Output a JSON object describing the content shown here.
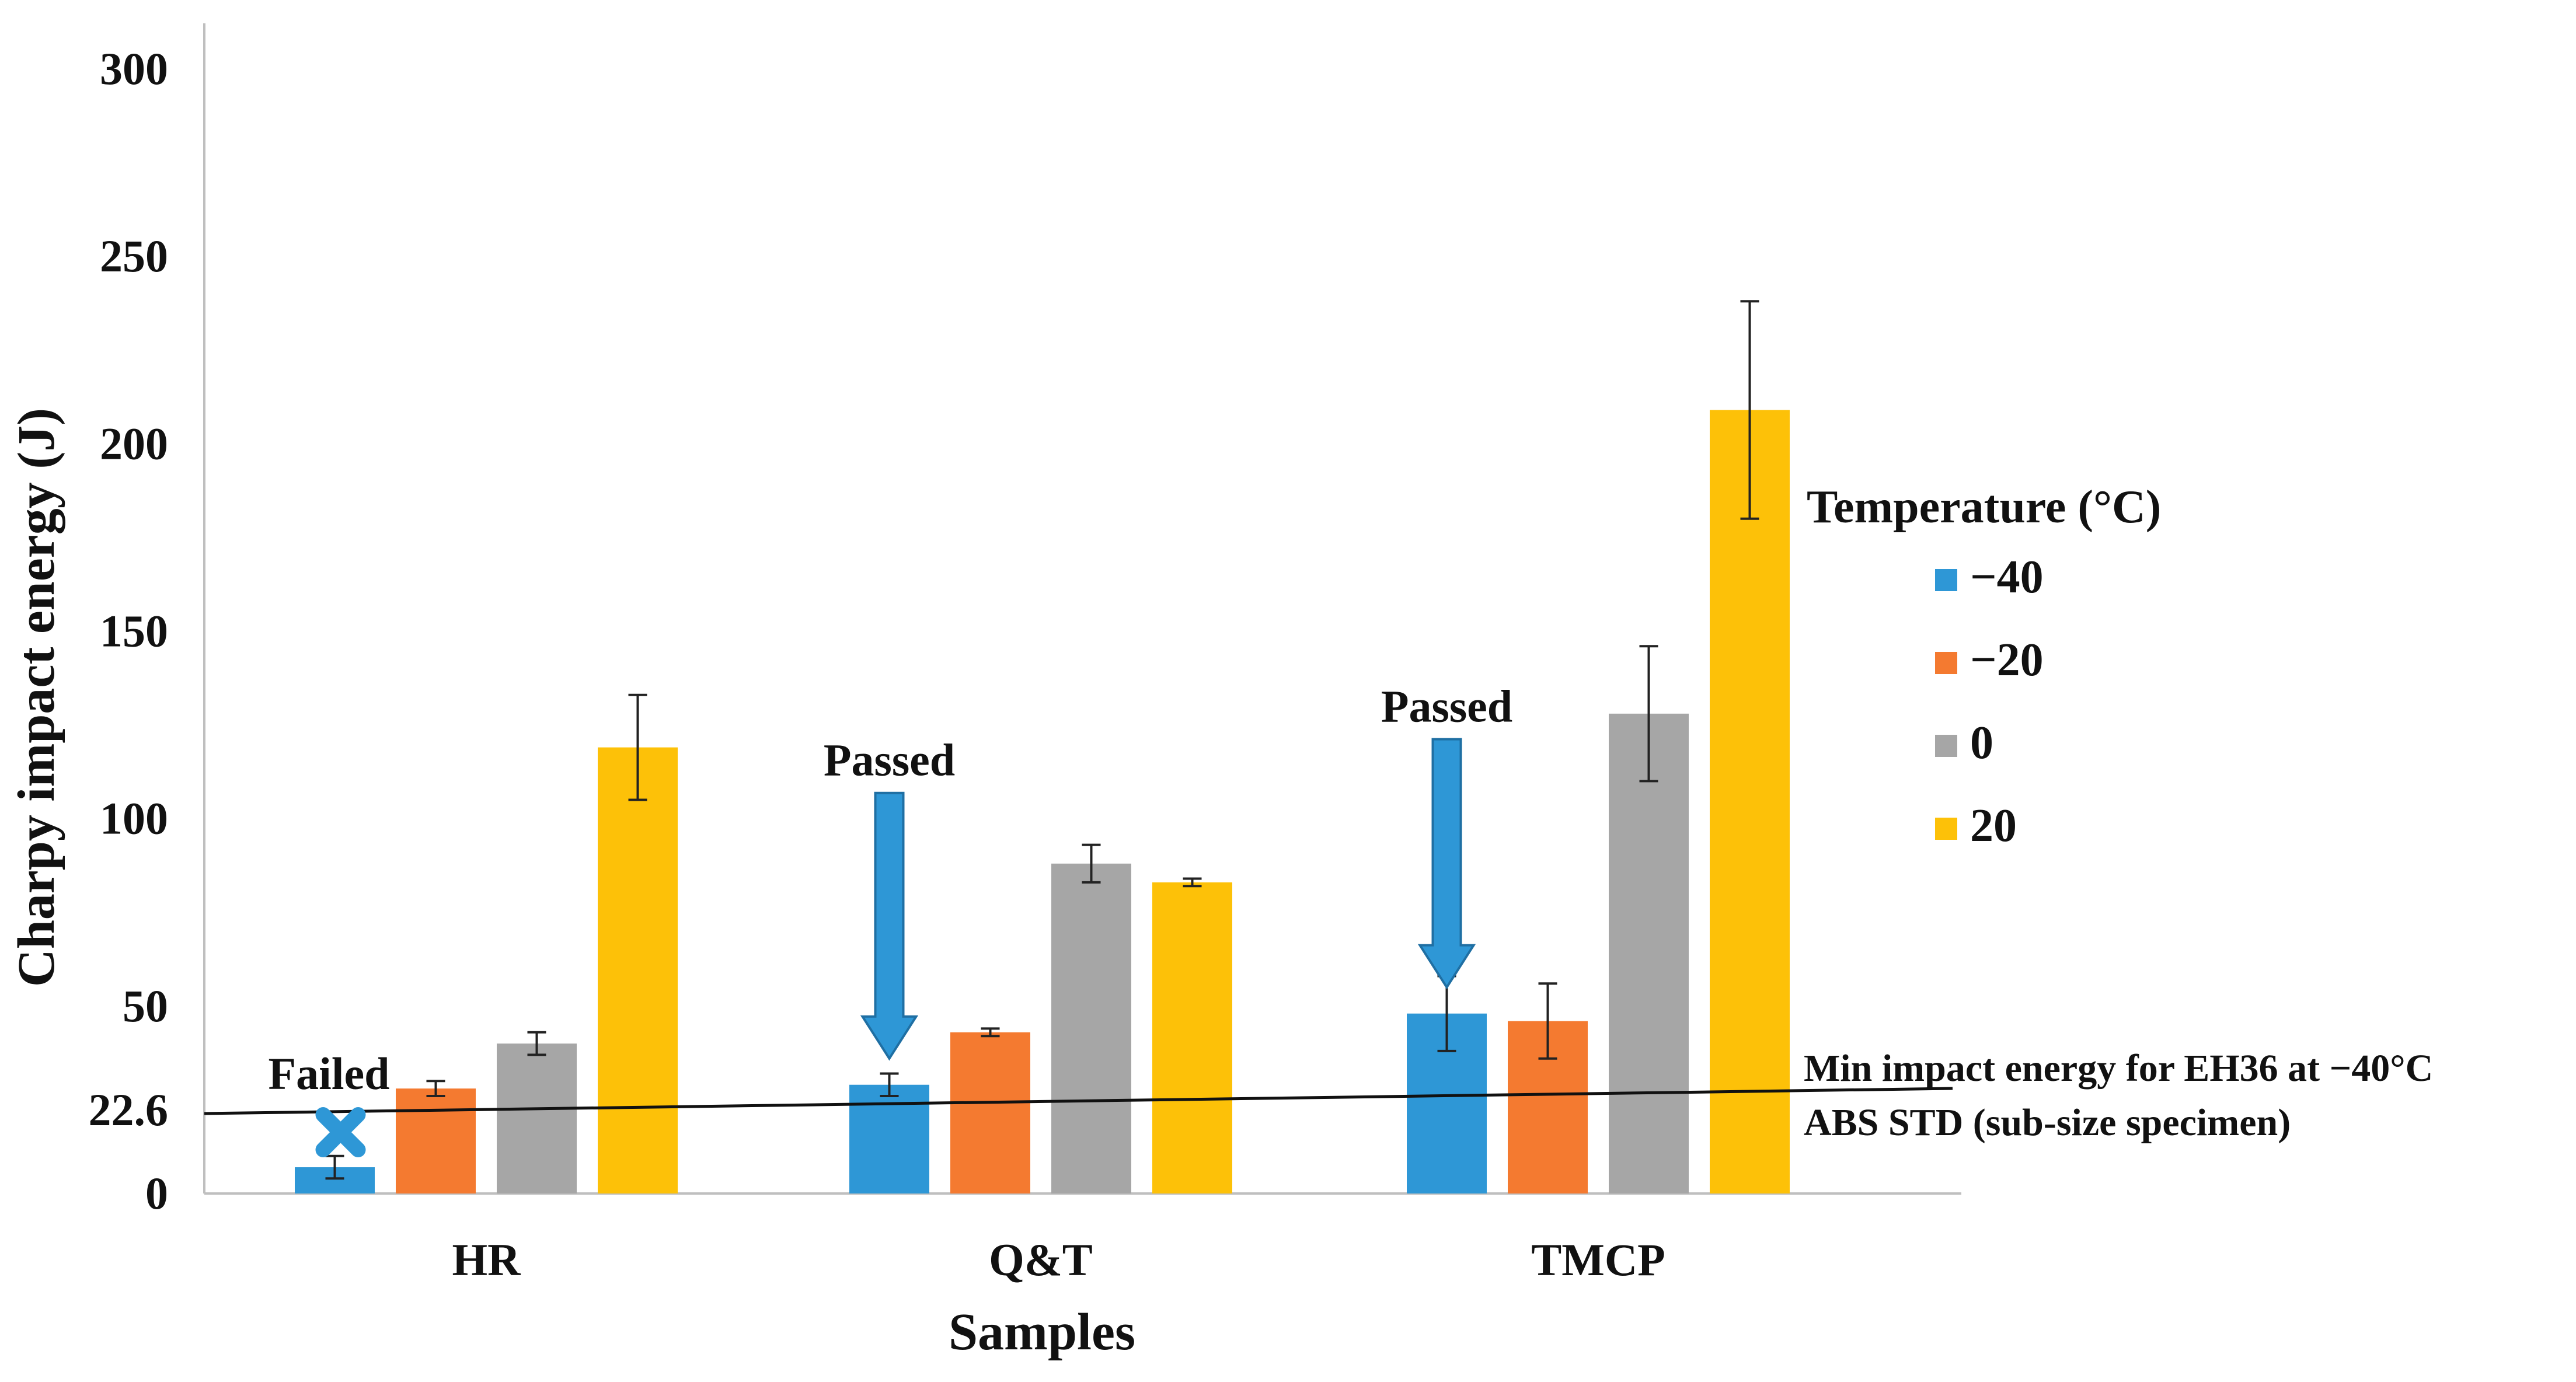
{
  "chart_data": {
    "type": "bar",
    "title": "",
    "xlabel": "Samples",
    "ylabel": "Charpy impact energy (J)",
    "ylim": [
      0,
      300
    ],
    "yticks": [
      0,
      50,
      100,
      150,
      200,
      250,
      300
    ],
    "extra_ytick": "22.6",
    "grid": false,
    "categories": [
      "HR",
      "Q&T",
      "TMCP"
    ],
    "series": [
      {
        "name": "−40",
        "color": "#2E97D6",
        "values": [
          7,
          29,
          48
        ],
        "errors": [
          3,
          3,
          10
        ]
      },
      {
        "name": "−20",
        "color": "#F47A30",
        "values": [
          28,
          43,
          46
        ],
        "errors": [
          2,
          1,
          10
        ]
      },
      {
        "name": "0",
        "color": "#A6A6A6",
        "values": [
          40,
          88,
          128
        ],
        "errors": [
          3,
          5,
          18
        ]
      },
      {
        "name": "20",
        "color": "#FDC108",
        "values": [
          119,
          83,
          209
        ],
        "errors": [
          14,
          1,
          29
        ]
      }
    ],
    "legend": {
      "title": "Temperature (°C)",
      "position": "right"
    },
    "reference_line": {
      "value": 22.6,
      "label_line1": "Min impact  energy for EH36 at −40°C",
      "label_line2": "ABS STD (sub-size specimen)"
    },
    "annotations": [
      {
        "text": "Failed",
        "category": "HR",
        "series": 0,
        "marker": "cross"
      },
      {
        "text": "Passed",
        "category": "Q&T",
        "series": 0,
        "marker": "arrow"
      },
      {
        "text": "Passed",
        "category": "TMCP",
        "series": 0,
        "marker": "arrow"
      }
    ]
  }
}
